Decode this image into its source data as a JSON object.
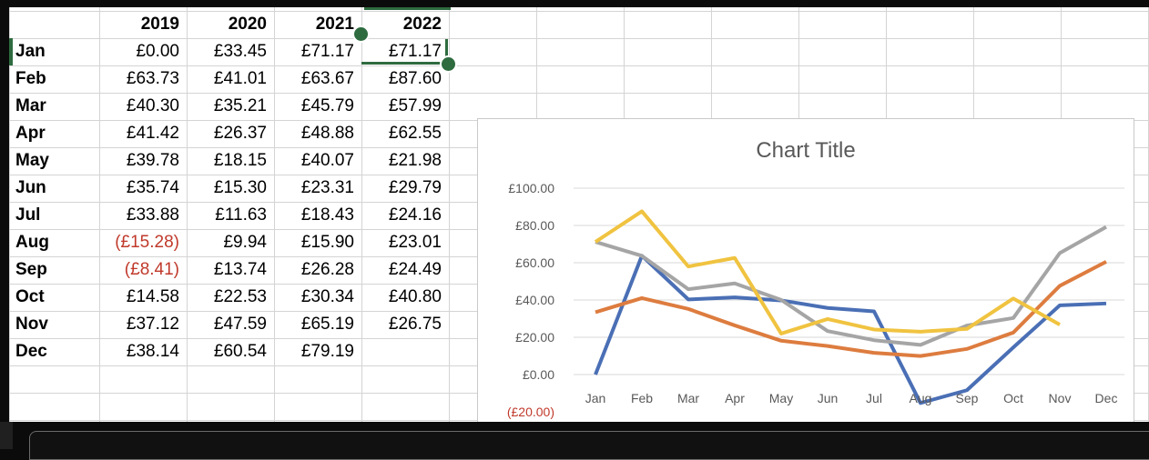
{
  "spreadsheet": {
    "headers": [
      "2019",
      "2020",
      "2021",
      "2022"
    ],
    "rows": [
      {
        "label": "Jan",
        "values": [
          "£0.00",
          "£33.45",
          "£71.17",
          "£71.17"
        ]
      },
      {
        "label": "Feb",
        "values": [
          "£63.73",
          "£41.01",
          "£63.67",
          "£87.60"
        ]
      },
      {
        "label": "Mar",
        "values": [
          "£40.30",
          "£35.21",
          "£45.79",
          "£57.99"
        ]
      },
      {
        "label": "Apr",
        "values": [
          "£41.42",
          "£26.37",
          "£48.88",
          "£62.55"
        ]
      },
      {
        "label": "May",
        "values": [
          "£39.78",
          "£18.15",
          "£40.07",
          "£21.98"
        ]
      },
      {
        "label": "Jun",
        "values": [
          "£35.74",
          "£15.30",
          "£23.31",
          "£29.79"
        ]
      },
      {
        "label": "Jul",
        "values": [
          "£33.88",
          "£11.63",
          "£18.43",
          "£24.16"
        ]
      },
      {
        "label": "Aug",
        "values": [
          "(£15.28)",
          "£9.94",
          "£15.90",
          "£23.01"
        ]
      },
      {
        "label": "Sep",
        "values": [
          "(£8.41)",
          "£13.74",
          "£26.28",
          "£24.49"
        ]
      },
      {
        "label": "Oct",
        "values": [
          "£14.58",
          "£22.53",
          "£30.34",
          "£40.80"
        ]
      },
      {
        "label": "Nov",
        "values": [
          "£37.12",
          "£47.59",
          "£65.19",
          "£26.75"
        ]
      },
      {
        "label": "Dec",
        "values": [
          "£38.14",
          "£60.54",
          "£79.19",
          ""
        ]
      }
    ],
    "negative_color": "#c0392b",
    "selection_color": "#2e6b3f"
  },
  "chart_data": {
    "type": "line",
    "title": "Chart Title",
    "categories": [
      "Jan",
      "Feb",
      "Mar",
      "Apr",
      "May",
      "Jun",
      "Jul",
      "Aug",
      "Sep",
      "Oct",
      "Nov",
      "Dec"
    ],
    "series": [
      {
        "color": "#4a6fb5",
        "values": [
          0.0,
          63.73,
          40.3,
          41.42,
          39.78,
          35.74,
          33.88,
          -15.28,
          -8.41,
          14.58,
          37.12,
          38.14
        ]
      },
      {
        "color": "#dd7c3f",
        "values": [
          33.45,
          41.01,
          35.21,
          26.37,
          18.15,
          15.3,
          11.63,
          9.94,
          13.74,
          22.53,
          47.59,
          60.54
        ]
      },
      {
        "color": "#a5a5a5",
        "values": [
          71.17,
          63.67,
          45.79,
          48.88,
          40.07,
          23.31,
          18.43,
          15.9,
          26.28,
          30.34,
          65.19,
          79.19
        ]
      },
      {
        "color": "#f0c340",
        "values": [
          71.17,
          87.6,
          57.99,
          62.55,
          21.98,
          29.79,
          24.16,
          23.01,
          24.49,
          40.8,
          26.75,
          null
        ]
      }
    ],
    "y_ticks": [
      "£100.00",
      "£80.00",
      "£60.00",
      "£40.00",
      "£20.00",
      "£0.00",
      "(£20.00)"
    ],
    "y_tick_values": [
      100,
      80,
      60,
      40,
      20,
      0,
      -20
    ],
    "ylim": [
      -20,
      100
    ],
    "grid": true,
    "legend": "none"
  }
}
